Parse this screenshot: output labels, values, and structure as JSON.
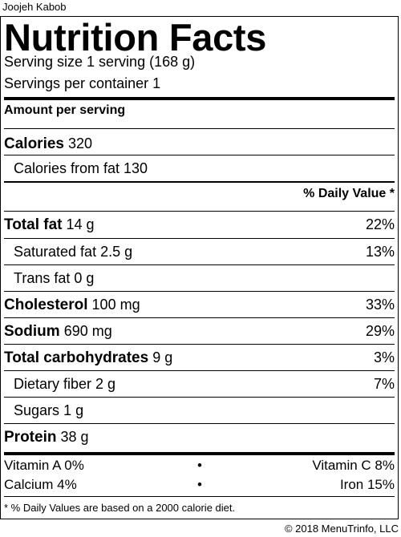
{
  "header": {
    "dish_name": "Joojeh Kabob"
  },
  "label": {
    "title": "Nutrition Facts",
    "serving_size": "Serving size 1 serving (168 g)",
    "servings_per_container": "Servings per container 1",
    "amount_per_serving": "Amount per serving",
    "calories_label": "Calories",
    "calories_value": "320",
    "calories_from_fat": "Calories from fat 130",
    "daily_value_header": "% Daily Value *",
    "nutrients": [
      {
        "name": "Total fat",
        "amount": "14 g",
        "dv": "22%"
      },
      {
        "name": "Saturated fat",
        "amount": "2.5 g",
        "dv": "13%"
      },
      {
        "name": "Trans fat",
        "amount": "0 g",
        "dv": ""
      },
      {
        "name": "Cholesterol",
        "amount": "100 mg",
        "dv": "33%"
      },
      {
        "name": "Sodium",
        "amount": "690 mg",
        "dv": "29%"
      },
      {
        "name": "Total carbohydrates",
        "amount": "9 g",
        "dv": "3%"
      },
      {
        "name": "Dietary fiber",
        "amount": "2 g",
        "dv": "7%"
      },
      {
        "name": "Sugars",
        "amount": "1 g",
        "dv": ""
      },
      {
        "name": "Protein",
        "amount": "38 g",
        "dv": ""
      }
    ],
    "vitamins": [
      {
        "left": "Vitamin A 0%",
        "right": "Vitamin C 8%"
      },
      {
        "left": "Calcium 4%",
        "right": "Iron 15%"
      }
    ],
    "bullet": "•",
    "footnote": "* % Daily Values are based on a 2000 calorie diet."
  },
  "footer": {
    "copyright": "© 2018 MenuTrinfo, LLC"
  }
}
